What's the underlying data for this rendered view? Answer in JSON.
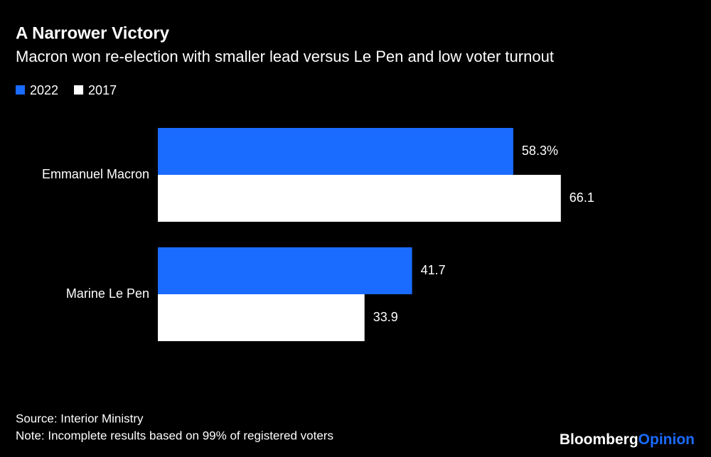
{
  "chart_data": {
    "type": "hbar",
    "title": "A Narrower Victory",
    "subtitle": "Macron won re-election with smaller lead versus Le Pen and low voter turnout",
    "categories": [
      "Emmanuel Macron",
      "Marine Le Pen"
    ],
    "series": [
      {
        "name": "2022",
        "color": "#1a6bff",
        "values": [
          58.3,
          41.7
        ],
        "value_labels": [
          "58.3%",
          "41.7"
        ]
      },
      {
        "name": "2017",
        "color": "#ffffff",
        "values": [
          66.1,
          33.9
        ]
      }
    ],
    "xlim": [
      0,
      80
    ],
    "source": "Source: Interior Ministry",
    "note": "Note: Incomplete results based on 99% of registered voters",
    "brand": "Bloomberg",
    "brand_suffix": "Opinion"
  }
}
